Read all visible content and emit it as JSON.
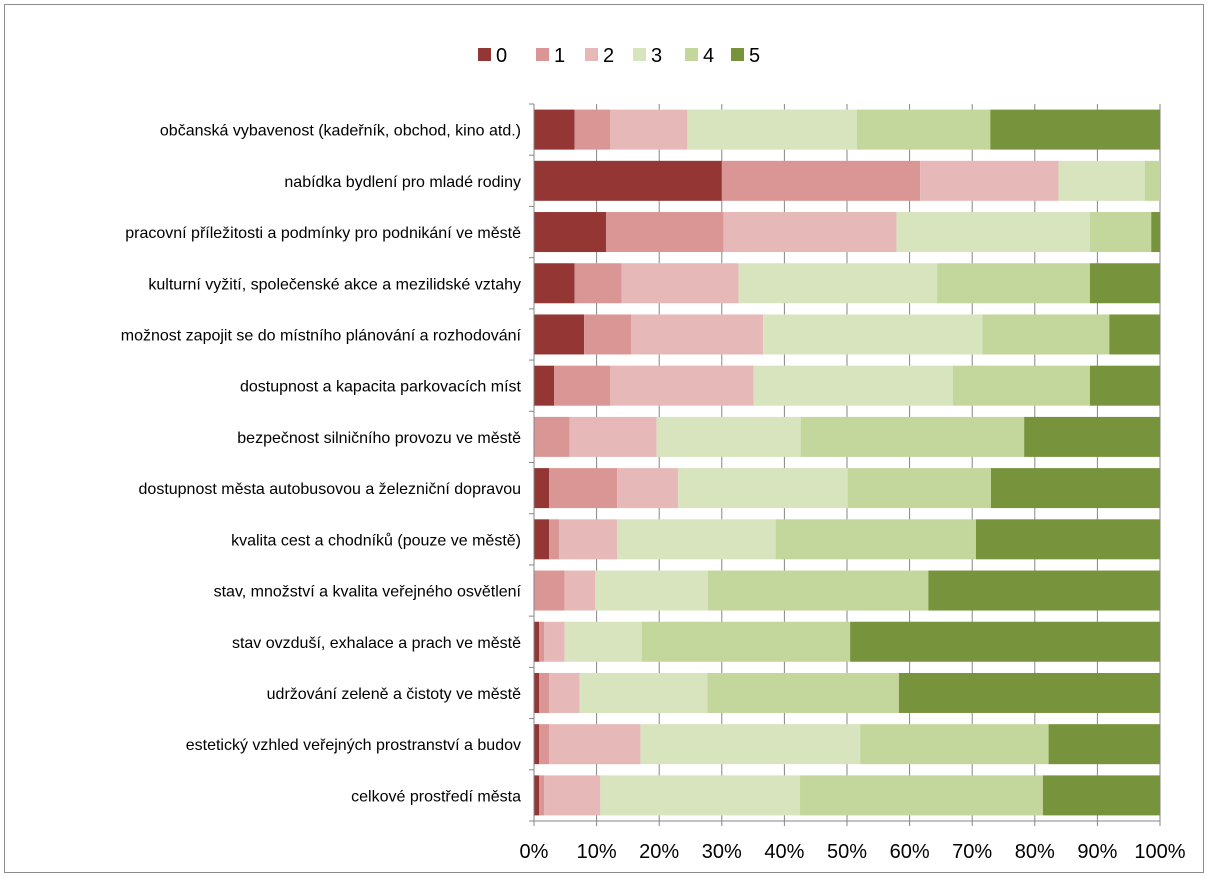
{
  "chart_data": {
    "type": "bar",
    "orientation": "horizontal",
    "stacked": "percent",
    "xlim": [
      0,
      100
    ],
    "x_ticks": [
      "0%",
      "10%",
      "20%",
      "30%",
      "40%",
      "50%",
      "60%",
      "70%",
      "80%",
      "90%",
      "100%"
    ],
    "grid": true,
    "legend_position": "top",
    "categories": [
      "občanská vybavenost (kadeřník, obchod, kino atd.)",
      "nabídka bydlení pro mladé rodiny",
      "pracovní příležitosti a podmínky pro podnikání ve městě",
      "kulturní vyžití, společenské akce a mezilidské vztahy",
      "možnost zapojit se do místního plánování a rozhodování",
      "dostupnost a kapacita parkovacích míst",
      "bezpečnost silničního provozu ve městě",
      "dostupnost města autobusovou a železniční dopravou",
      "kvalita cest a chodníků (pouze ve městě)",
      "stav, množství a kvalita veřejného osvětlení",
      "stav ovzduší, exhalace a prach ve městě",
      "udržování zeleně a čistoty ve městě",
      "estetický vzhled veřejných prostranství a budov",
      "celkové prostředí města"
    ],
    "series": [
      {
        "name": "0",
        "color": "#943634",
        "values": [
          6.5,
          30,
          11.5,
          6.5,
          8,
          3.2,
          0,
          2.4,
          2.4,
          0,
          0.8,
          0.8,
          0.8,
          0.8
        ]
      },
      {
        "name": "1",
        "color": "#d99694",
        "values": [
          5.7,
          31.7,
          18.8,
          7.5,
          7.5,
          9,
          5.7,
          10.9,
          1.6,
          4.9,
          0.8,
          1.6,
          1.6,
          0.8
        ]
      },
      {
        "name": "2",
        "color": "#e6b9b8",
        "values": [
          12.3,
          22.1,
          27.6,
          18.7,
          21.1,
          22.9,
          13.9,
          9.7,
          9.3,
          4.9,
          3.3,
          4.9,
          14.6,
          9
        ]
      },
      {
        "name": "3",
        "color": "#d7e4bd",
        "values": [
          27.1,
          13.8,
          30.9,
          31.7,
          35,
          31.8,
          23,
          27.1,
          25.3,
          18,
          12.3,
          20.4,
          35.1,
          31.9
        ]
      },
      {
        "name": "4",
        "color": "#c3d69b",
        "values": [
          21.3,
          2.4,
          9.8,
          24.4,
          20.3,
          21.9,
          35.7,
          22.9,
          32,
          35.2,
          33.3,
          30.6,
          30.1,
          38.8
        ]
      },
      {
        "name": "5",
        "color": "#77933c",
        "values": [
          27.1,
          0,
          1.4,
          11.2,
          8.1,
          11.2,
          21.7,
          27,
          29.4,
          37,
          49.5,
          41.7,
          17.8,
          18.7
        ]
      }
    ]
  }
}
